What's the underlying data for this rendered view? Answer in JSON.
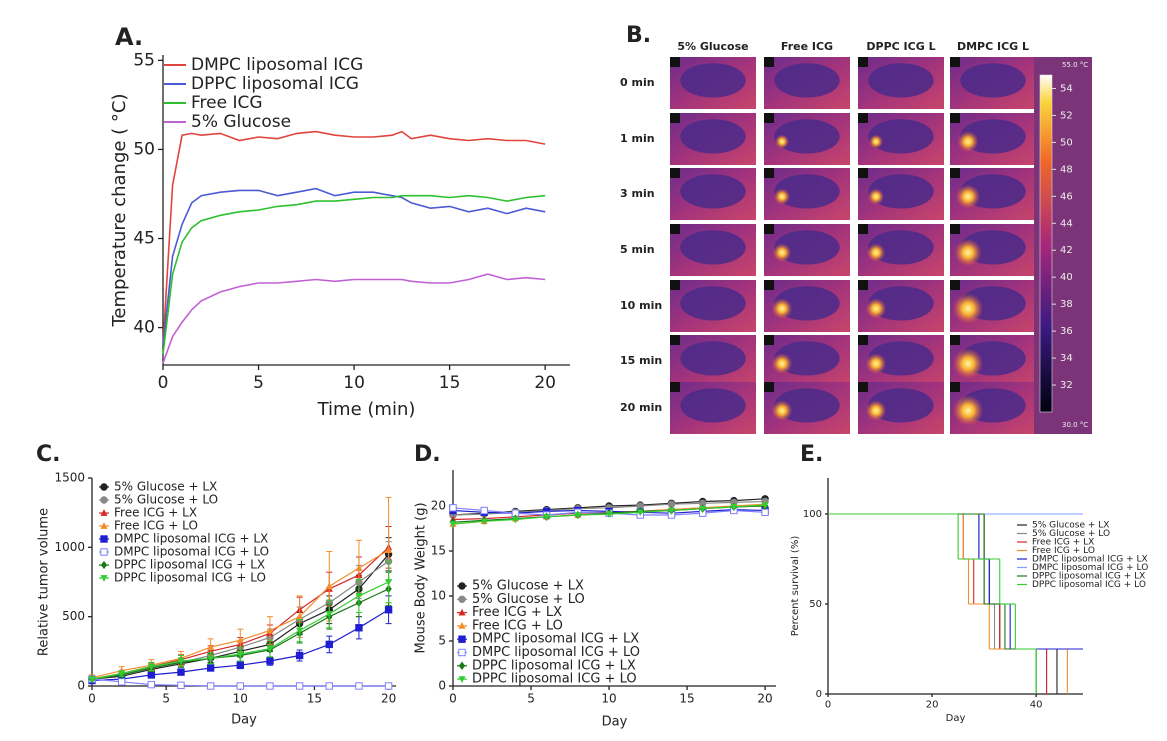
{
  "chart_data": [
    {
      "type": "line",
      "label": "A.",
      "xlabel": "Time (min)",
      "ylabel": "Temperature change ( °C)",
      "x": [
        0,
        0.5,
        1,
        1.5,
        2,
        3,
        4,
        5,
        6,
        7,
        8,
        9,
        10,
        11,
        12,
        12.5,
        13,
        14,
        15,
        16,
        17,
        18,
        19,
        20
      ],
      "xlim": [
        0,
        21.3
      ],
      "xticks": [
        0,
        5,
        10,
        15,
        20
      ],
      "ylim": [
        37.9,
        55.3
      ],
      "yticks": [
        40,
        45,
        50,
        55
      ],
      "series": [
        {
          "name": "DMPC liposomal ICG",
          "color": "#e0453d",
          "values": [
            39,
            48,
            50.8,
            50.9,
            50.8,
            50.9,
            50.5,
            50.7,
            50.6,
            50.9,
            51.0,
            50.8,
            50.7,
            50.7,
            50.8,
            51.0,
            50.6,
            50.8,
            50.6,
            50.5,
            50.6,
            50.5,
            50.5,
            50.3
          ]
        },
        {
          "name": "DPPC liposomal ICG",
          "color": "#4a5bd4",
          "values": [
            39,
            44,
            45.8,
            47,
            47.4,
            47.6,
            47.7,
            47.7,
            47.4,
            47.6,
            47.8,
            47.4,
            47.6,
            47.6,
            47.4,
            47.3,
            47.0,
            46.7,
            46.8,
            46.5,
            46.7,
            46.4,
            46.7,
            46.5
          ]
        },
        {
          "name": "Free ICG",
          "color": "#2ec02e",
          "values": [
            38.5,
            43,
            44.8,
            45.6,
            46,
            46.3,
            46.5,
            46.6,
            46.8,
            46.9,
            47.1,
            47.1,
            47.2,
            47.3,
            47.3,
            47.4,
            47.4,
            47.4,
            47.3,
            47.4,
            47.3,
            47.1,
            47.3,
            47.4
          ]
        },
        {
          "name": "5% Glucose",
          "color": "#c061d6",
          "values": [
            38,
            39.5,
            40.3,
            41,
            41.5,
            42,
            42.3,
            42.5,
            42.5,
            42.6,
            42.7,
            42.6,
            42.7,
            42.7,
            42.7,
            42.7,
            42.6,
            42.5,
            42.5,
            42.7,
            43.0,
            42.7,
            42.8,
            42.7
          ]
        }
      ]
    },
    {
      "type": "line",
      "label": "C.",
      "xlabel": "Day",
      "ylabel": "Relative tumor volume",
      "x": [
        0,
        2,
        4,
        6,
        8,
        10,
        12,
        14,
        16,
        18,
        20
      ],
      "xlim": [
        0,
        20.5
      ],
      "xticks": [
        0,
        5,
        10,
        15,
        20
      ],
      "ylim": [
        0,
        1500
      ],
      "yticks": [
        0,
        500,
        1000,
        1500
      ],
      "series": [
        {
          "name": "5% Glucose + LX",
          "color": "#222222",
          "marker": "circle",
          "values": [
            50,
            70,
            120,
            160,
            200,
            250,
            300,
            450,
            550,
            700,
            950
          ],
          "errors": [
            10,
            15,
            20,
            25,
            30,
            40,
            50,
            80,
            100,
            100,
            120
          ]
        },
        {
          "name": "5% Glucose + LO",
          "color": "#888888",
          "marker": "circle",
          "values": [
            50,
            80,
            130,
            170,
            220,
            280,
            350,
            480,
            600,
            750,
            900
          ],
          "errors": [
            10,
            15,
            20,
            25,
            35,
            45,
            60,
            90,
            110,
            120,
            140
          ]
        },
        {
          "name": "Free ICG + LX",
          "color": "#d62728",
          "marker": "triangle",
          "values": [
            50,
            90,
            140,
            190,
            250,
            300,
            380,
            550,
            700,
            800,
            1000
          ],
          "errors": [
            15,
            20,
            25,
            35,
            40,
            50,
            60,
            90,
            120,
            130,
            150
          ]
        },
        {
          "name": "Free ICG + LO",
          "color": "#f28e2b",
          "marker": "triangle",
          "values": [
            60,
            110,
            150,
            200,
            280,
            330,
            400,
            500,
            720,
            850,
            980
          ],
          "errors": [
            20,
            30,
            40,
            50,
            60,
            80,
            100,
            150,
            250,
            200,
            380
          ]
        },
        {
          "name": "DMPC liposomal ICG + LX",
          "color": "#1f1fd1",
          "marker": "square",
          "values": [
            40,
            50,
            80,
            100,
            130,
            150,
            180,
            220,
            300,
            420,
            550
          ],
          "errors": [
            10,
            10,
            15,
            20,
            20,
            25,
            30,
            40,
            60,
            80,
            100
          ]
        },
        {
          "name": "DMPC liposomal ICG + LO",
          "color": "#7f7fff",
          "marker": "square-open",
          "values": [
            50,
            30,
            10,
            5,
            0,
            0,
            0,
            0,
            0,
            0,
            0
          ],
          "errors": [
            10,
            5,
            3,
            2,
            0,
            0,
            0,
            0,
            0,
            0,
            0
          ]
        },
        {
          "name": "DPPC liposomal ICG + LX",
          "color": "#1a7a1a",
          "marker": "diamond",
          "values": [
            50,
            80,
            130,
            170,
            200,
            220,
            260,
            380,
            500,
            600,
            700
          ],
          "errors": [
            10,
            15,
            25,
            30,
            35,
            40,
            50,
            70,
            90,
            100,
            120
          ]
        },
        {
          "name": "DPPC liposomal ICG + LO",
          "color": "#33cc33",
          "marker": "triangle-down",
          "values": [
            50,
            90,
            140,
            180,
            200,
            230,
            270,
            400,
            520,
            650,
            750
          ],
          "errors": [
            10,
            20,
            30,
            40,
            40,
            50,
            60,
            80,
            100,
            120,
            150
          ]
        }
      ]
    },
    {
      "type": "line",
      "label": "D.",
      "xlabel": "Day",
      "ylabel": "Mouse Body Weight  (g)",
      "x": [
        0,
        2,
        4,
        6,
        8,
        10,
        12,
        14,
        16,
        18,
        20
      ],
      "xlim": [
        0,
        20.7
      ],
      "xticks": [
        0,
        5,
        10,
        15,
        20
      ],
      "ylim": [
        0,
        24
      ],
      "yticks": [
        0,
        5,
        10,
        15,
        20
      ],
      "series": [
        {
          "name": "5% Glucose + LX",
          "color": "#222222",
          "marker": "circle",
          "values": [
            19,
            19.2,
            19.4,
            19.6,
            19.8,
            20,
            20.1,
            20.3,
            20.5,
            20.6,
            20.8
          ]
        },
        {
          "name": "5% Glucose + LO",
          "color": "#888888",
          "marker": "circle",
          "values": [
            19,
            19.1,
            19.3,
            19.5,
            19.7,
            19.8,
            20,
            20.2,
            20.3,
            20.4,
            20.5
          ]
        },
        {
          "name": "Free ICG + LX",
          "color": "#d62728",
          "marker": "triangle",
          "values": [
            18.5,
            18.6,
            18.8,
            19,
            19.2,
            19.3,
            19.4,
            19.6,
            19.8,
            19.9,
            20
          ]
        },
        {
          "name": "Free ICG + LO",
          "color": "#f28e2b",
          "marker": "triangle",
          "values": [
            18,
            18.3,
            18.6,
            18.8,
            19,
            19.2,
            19.4,
            19.6,
            19.8,
            20,
            20.2
          ]
        },
        {
          "name": "DMPC liposomal ICG + LX",
          "color": "#1f1fd1",
          "marker": "square",
          "values": [
            19.5,
            19.3,
            19.2,
            19.4,
            19.5,
            19.4,
            19.3,
            19.2,
            19.4,
            19.6,
            19.5
          ]
        },
        {
          "name": "DMPC liposomal ICG + LO",
          "color": "#7f7fff",
          "marker": "square-open",
          "values": [
            19.8,
            19.5,
            19.2,
            19.0,
            19.3,
            19.2,
            19.0,
            19.0,
            19.2,
            19.5,
            19.3
          ]
        },
        {
          "name": "DPPC liposomal ICG + LX",
          "color": "#1a7a1a",
          "marker": "diamond",
          "values": [
            18.2,
            18.4,
            18.6,
            18.8,
            19,
            19.2,
            19.4,
            19.5,
            19.7,
            19.9,
            20
          ]
        },
        {
          "name": "DPPC liposomal ICG + LO",
          "color": "#33cc33",
          "marker": "triangle-down",
          "values": [
            18,
            18.3,
            18.5,
            18.8,
            19,
            19.1,
            19.3,
            19.5,
            19.7,
            19.9,
            20.1
          ]
        }
      ]
    },
    {
      "type": "step",
      "label": "E.",
      "xlabel": "Day",
      "ylabel": "Percent survival (%)",
      "xlim": [
        0,
        49
      ],
      "xticks": [
        0,
        20,
        40
      ],
      "ylim": [
        0,
        120
      ],
      "yticks": [
        0,
        50,
        100
      ],
      "series": [
        {
          "name": "5% Glucose + LX",
          "color": "#222222",
          "x": [
            0,
            30,
            31,
            33,
            44
          ],
          "values": [
            100,
            75,
            50,
            25,
            0
          ]
        },
        {
          "name": "5% Glucose + LO",
          "color": "#888888",
          "x": [
            0,
            29,
            30,
            32,
            42
          ],
          "values": [
            100,
            75,
            50,
            25,
            0
          ]
        },
        {
          "name": "Free ICG + LX",
          "color": "#d62728",
          "x": [
            0,
            26,
            28,
            33,
            42
          ],
          "values": [
            100,
            75,
            50,
            25,
            0
          ]
        },
        {
          "name": "Free ICG + LO",
          "color": "#f28e2b",
          "x": [
            0,
            26,
            27,
            31,
            46
          ],
          "values": [
            100,
            75,
            50,
            25,
            0
          ]
        },
        {
          "name": "DMPC liposomal ICG + LX",
          "color": "#1f1fd1",
          "x": [
            0,
            29,
            31,
            35,
            49
          ],
          "values": [
            100,
            75,
            50,
            25,
            25
          ]
        },
        {
          "name": "DMPC liposomal ICG + LO",
          "color": "#7f9fff",
          "x": [
            0,
            49
          ],
          "values": [
            100,
            100
          ]
        },
        {
          "name": "DPPC liposomal ICG + LX",
          "color": "#1a7a1a",
          "x": [
            0,
            30,
            34,
            40
          ],
          "values": [
            100,
            50,
            25,
            0
          ]
        },
        {
          "name": "DPPC liposomal ICG + LO",
          "color": "#33cc33",
          "x": [
            0,
            25,
            33,
            36,
            40
          ],
          "values": [
            100,
            75,
            50,
            25,
            0
          ]
        }
      ]
    }
  ],
  "thermal_panel": {
    "label": "B.",
    "columns": [
      "5% Glucose",
      "Free ICG",
      "DPPC ICG L",
      "DMPC ICG L"
    ],
    "rows": [
      "0 min",
      "1 min",
      "3 min",
      "5 min",
      "10 min",
      "15 min",
      "20 min"
    ],
    "colorbar": {
      "range": [
        30,
        55
      ],
      "ticks": [
        32,
        34,
        36,
        38,
        40,
        42,
        44,
        46,
        48,
        50,
        52,
        54
      ],
      "max_label": "55.0 °C",
      "min_label": "30.0 °C"
    }
  }
}
